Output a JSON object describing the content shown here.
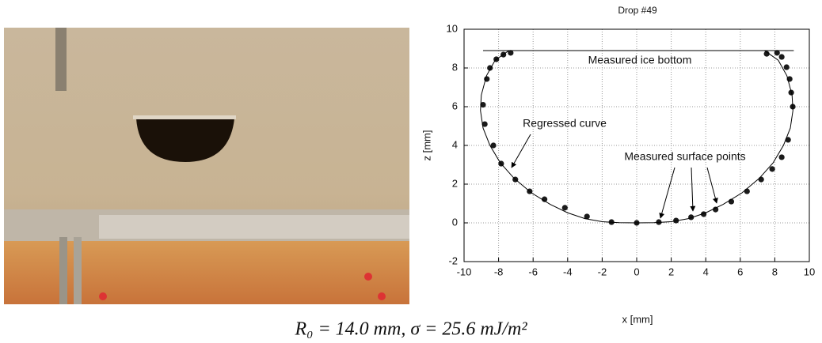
{
  "chart_data": {
    "type": "scatter",
    "title": "Drop #49",
    "x_label": "x [mm]",
    "y_label": "z [mm]",
    "xlim": [
      -10,
      10
    ],
    "xticks": [
      -10,
      -8,
      -6,
      -4,
      -2,
      0,
      2,
      4,
      6,
      8,
      10
    ],
    "ylim": [
      -2,
      10
    ],
    "yticks": [
      -2,
      0,
      2,
      4,
      6,
      8,
      10
    ],
    "grid": true,
    "series": [
      {
        "style": "points",
        "color": "#1a1a1a",
        "x": [
          -7.3,
          -7.72,
          -8.13,
          -8.5,
          -8.68,
          -8.9,
          -8.8,
          -8.3,
          -7.85,
          -7.03,
          -6.2,
          -5.34,
          -4.16,
          -2.88,
          -1.46,
          0,
          1.28,
          2.28,
          3.15,
          3.88,
          4.57,
          5.48,
          6.39,
          7.21,
          7.85,
          8.4,
          8.77,
          9.04,
          8.95,
          8.86,
          8.68,
          8.4,
          8.13,
          7.53
        ],
        "values": [
          8.78,
          8.69,
          8.45,
          8.0,
          7.43,
          6.1,
          5.1,
          4.0,
          3.06,
          2.24,
          1.63,
          1.22,
          0.78,
          0.33,
          0.04,
          0,
          0.04,
          0.12,
          0.29,
          0.45,
          0.69,
          1.1,
          1.63,
          2.24,
          2.78,
          3.39,
          4.29,
          6.0,
          6.73,
          7.43,
          8.04,
          8.57,
          8.78,
          8.73
        ]
      },
      {
        "style": "line",
        "color": "#000000",
        "x": [
          -7.4,
          -8.2,
          -8.7,
          -9.0,
          -9.05,
          -8.9,
          -8.5,
          -7.9,
          -7.1,
          -6.1,
          -5,
          -4,
          -3,
          -2,
          -1,
          0,
          1,
          2,
          3,
          4,
          5,
          6.1,
          7.1,
          7.9,
          8.5,
          8.9,
          9.05,
          9.0,
          8.7,
          8.2,
          7.4
        ],
        "values": [
          8.9,
          8.4,
          7.6,
          6.6,
          5.8,
          4.9,
          4.0,
          3.1,
          2.3,
          1.55,
          0.95,
          0.52,
          0.22,
          0.06,
          0.01,
          0,
          0.01,
          0.06,
          0.22,
          0.52,
          0.95,
          1.55,
          2.3,
          3.1,
          4.0,
          4.9,
          5.8,
          6.6,
          7.6,
          8.4,
          8.9
        ]
      },
      {
        "style": "line",
        "color": "#000000",
        "x": [
          -8.9,
          9.1
        ],
        "values": [
          8.9,
          8.9
        ]
      }
    ],
    "annotations": [
      "Measured ice bottom",
      "Regressed curve",
      "Measured surface points"
    ]
  },
  "caption": "R₀ = 14.0 mm, σ = 25.6 mJ/m²"
}
